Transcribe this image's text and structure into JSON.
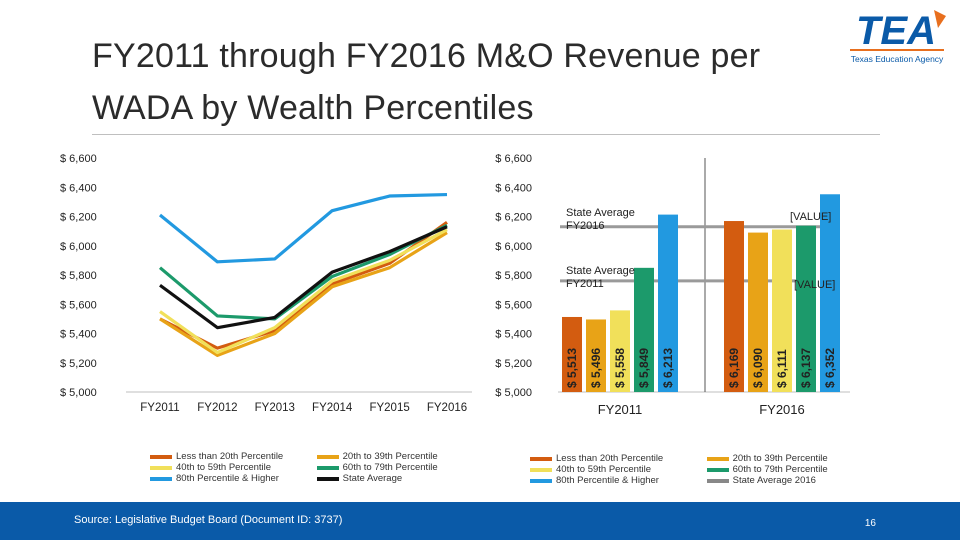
{
  "title": "FY2011 through FY2016 M&O Revenue per WADA by Wealth Percentiles",
  "source": "Source: Legislative Budget Board (Document ID: 3737)",
  "page_number": "16",
  "logo": {
    "word": "TEA",
    "subtitle": "Texas Education Agency"
  },
  "colors": {
    "lt20": "#d35c10",
    "p20_39": "#e8a317",
    "p40_59": "#f1e05a",
    "p60_79": "#1c9a6b",
    "p80": "#2299e0",
    "state": "#111111",
    "state2016": "#888888"
  },
  "chart_data": [
    {
      "type": "line",
      "categories": [
        "FY2011",
        "FY2012",
        "FY2013",
        "FY2014",
        "FY2015",
        "FY2016"
      ],
      "ylim": [
        5000,
        6600
      ],
      "ytick_values": [
        5000,
        5200,
        5400,
        5600,
        5800,
        6000,
        6200,
        6400,
        6600
      ],
      "ytick_labels": [
        "$ 5,000",
        "$ 5,200",
        "$ 5,400",
        "$ 5,600",
        "$ 5,800",
        "$ 6,000",
        "$ 6,200",
        "$ 6,400",
        "$ 6,600"
      ],
      "series": [
        {
          "name": "Less than 20th Percentile",
          "key": "lt20",
          "values": [
            5500,
            5300,
            5420,
            5740,
            5880,
            6160
          ]
        },
        {
          "name": "20th to 39th Percentile",
          "key": "p20_39",
          "values": [
            5500,
            5250,
            5400,
            5720,
            5850,
            6090
          ]
        },
        {
          "name": "40th to 59th Percentile",
          "key": "p40_59",
          "values": [
            5550,
            5270,
            5440,
            5760,
            5900,
            6110
          ]
        },
        {
          "name": "60th to 79th Percentile",
          "key": "p60_79",
          "values": [
            5850,
            5520,
            5500,
            5790,
            5940,
            6140
          ]
        },
        {
          "name": "80th Percentile & Higher",
          "key": "p80",
          "values": [
            6210,
            5890,
            5910,
            6240,
            6340,
            6350
          ]
        },
        {
          "name": "State Average",
          "key": "state",
          "values": [
            5730,
            5440,
            5510,
            5820,
            5960,
            6130
          ]
        }
      ]
    },
    {
      "type": "bar",
      "groups": [
        "FY2011",
        "FY2016"
      ],
      "ylim": [
        5000,
        6600
      ],
      "ytick_values": [
        5000,
        5200,
        5400,
        5600,
        5800,
        6000,
        6200,
        6400,
        6600
      ],
      "ytick_labels": [
        "$ 5,000",
        "$ 5,200",
        "$ 5,400",
        "$ 5,600",
        "$ 5,800",
        "$ 6,000",
        "$ 6,200",
        "$ 6,400",
        "$ 6,600"
      ],
      "series_keys": [
        "lt20",
        "p20_39",
        "p40_59",
        "p60_79",
        "p80"
      ],
      "values": [
        [
          5513,
          5496,
          5558,
          5849,
          6213
        ],
        [
          6169,
          6090,
          6111,
          6137,
          6352
        ]
      ],
      "value_labels": [
        [
          "$ 5,513",
          "$ 5,496",
          "$ 5,558",
          "$ 5,849",
          "$ 6,213"
        ],
        [
          "$ 6,169",
          "$ 6,090",
          "$ 6,111",
          "$ 6,137",
          "$ 6,352"
        ]
      ],
      "state_avg_2011_label": "State Average FY2011",
      "state_avg_2016_label": "State Average FY2016",
      "state_avg_2011_value": 5760,
      "state_avg_2016_value": 6130,
      "value_placeholder": "[VALUE]",
      "legend": [
        {
          "name": "Less than 20th Percentile",
          "key": "lt20"
        },
        {
          "name": "20th to 39th Percentile",
          "key": "p20_39"
        },
        {
          "name": "40th to 59th Percentile",
          "key": "p40_59"
        },
        {
          "name": "60th to 79th Percentile",
          "key": "p60_79"
        },
        {
          "name": "80th Percentile & Higher",
          "key": "p80"
        },
        {
          "name": "State Average 2016",
          "key": "state2016"
        }
      ]
    }
  ]
}
